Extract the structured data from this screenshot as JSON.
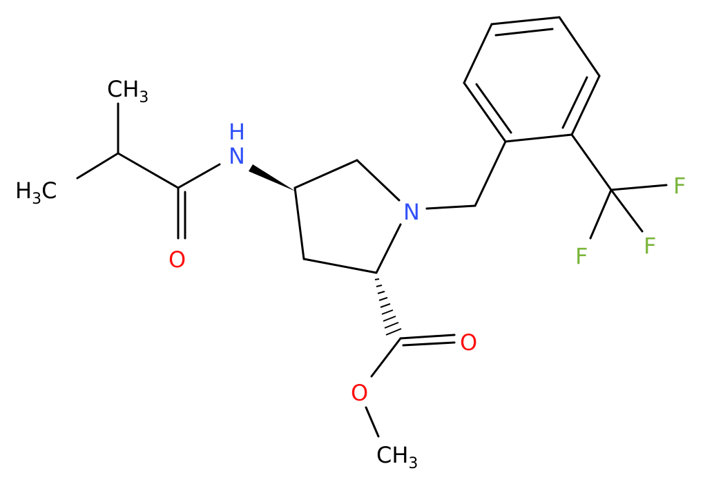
{
  "atoms": [
    {
      "text": "CH",
      "sub": "3"
    },
    {
      "text": "H",
      "sub": "3",
      "tail": "C"
    },
    {
      "text": "O"
    },
    {
      "text": "H"
    },
    {
      "text": "N"
    },
    {
      "text": "N"
    },
    {
      "text": "F"
    },
    {
      "text": "F"
    },
    {
      "text": "F"
    },
    {
      "text": "O"
    },
    {
      "text": "O"
    },
    {
      "text": "CH",
      "sub": "3"
    }
  ]
}
